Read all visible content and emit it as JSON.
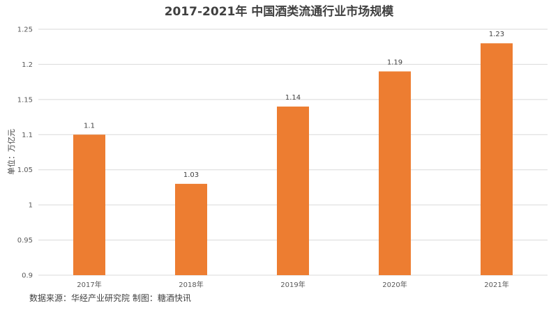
{
  "chart_data": {
    "type": "bar",
    "title": "2017-2021年 中国酒类流通行业市场规模",
    "ylabel": "单位：万亿元",
    "xlabel": "",
    "categories": [
      "2017年",
      "2018年",
      "2019年",
      "2020年",
      "2021年"
    ],
    "values": [
      1.1,
      1.03,
      1.14,
      1.19,
      1.23
    ],
    "data_labels": [
      "1.1",
      "1.03",
      "1.14",
      "1.19",
      "1.23"
    ],
    "ylim": [
      0.9,
      1.25
    ],
    "yticks": [
      0.9,
      0.95,
      1,
      1.05,
      1.1,
      1.15,
      1.2,
      1.25
    ],
    "ytick_labels": [
      "0.9",
      "0.95",
      "1",
      "1.05",
      "1.1",
      "1.15",
      "1.2",
      "1.25"
    ],
    "grid": true,
    "legend": "none",
    "bar_color": "#ED7D31",
    "grid_color": "#D9D9D9"
  },
  "source_note": "数据来源：华经产业研究院 制图：糖酒快讯"
}
